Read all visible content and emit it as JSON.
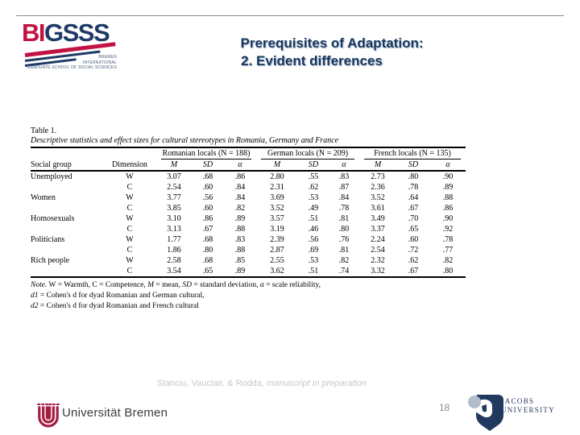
{
  "slide": {
    "title_line1": "Prerequisites of Adaptation:",
    "title_line2": "2. Evident differences",
    "page_number": "18"
  },
  "logo_bigsss": {
    "wordmark_red": "BI",
    "wordmark_blue": "GSSS",
    "tagline_line1": "BREMEN",
    "tagline_line2": "INTERNATIONAL",
    "tagline_line3": "GRADUATE SCHOOL OF SOCIAL SCIENCES",
    "colors": {
      "red": "#c11243",
      "blue": "#1e3a66"
    }
  },
  "table": {
    "label": "Table 1.",
    "caption": "Descriptive statistics and effect sizes for cultural stereotypes in Romania, Germany and France",
    "groups": [
      {
        "label": "Romanian locals (N = 188)"
      },
      {
        "label": "German locals (N = 209)"
      },
      {
        "label": "French locals (N = 135)"
      }
    ],
    "col_headers": {
      "social_group": "Social group",
      "dimension": "Dimension",
      "m": "M",
      "sd": "SD",
      "alpha": "α"
    },
    "rows": [
      {
        "social_group": "Unemployed",
        "dimension": "W",
        "values": [
          "3.07",
          ".68",
          ".86",
          "2.80",
          ".55",
          ".83",
          "2.73",
          ".80",
          ".90"
        ]
      },
      {
        "social_group": "",
        "dimension": "C",
        "values": [
          "2.54",
          ".60",
          ".84",
          "2.31",
          ".62",
          ".87",
          "2.36",
          ".78",
          ".89"
        ]
      },
      {
        "social_group": "Women",
        "dimension": "W",
        "values": [
          "3.77",
          ".56",
          ".84",
          "3.69",
          ".53",
          ".84",
          "3.52",
          ".64",
          ".88"
        ]
      },
      {
        "social_group": "",
        "dimension": "C",
        "values": [
          "3.85",
          ".60",
          ".82",
          "3.52",
          ".49",
          ".78",
          "3.61",
          ".67",
          ".86"
        ]
      },
      {
        "social_group": "Homosexuals",
        "dimension": "W",
        "values": [
          "3.10",
          ".86",
          ".89",
          "3.57",
          ".51",
          ".81",
          "3.49",
          ".70",
          ".90"
        ]
      },
      {
        "social_group": "",
        "dimension": "C",
        "values": [
          "3.13",
          ".67",
          ".88",
          "3.19",
          ".46",
          ".80",
          "3.37",
          ".65",
          ".92"
        ]
      },
      {
        "social_group": "Politicians",
        "dimension": "W",
        "values": [
          "1.77",
          ".68",
          ".83",
          "2.39",
          ".56",
          ".76",
          "2.24",
          ".60",
          ".78"
        ]
      },
      {
        "social_group": "",
        "dimension": "C",
        "values": [
          "1.86",
          ".80",
          ".88",
          "2.87",
          ".69",
          ".81",
          "2.54",
          ".72",
          ".77"
        ]
      },
      {
        "social_group": "Rich people",
        "dimension": "W",
        "values": [
          "2.58",
          ".68",
          ".85",
          "2.55",
          ".53",
          ".82",
          "2.32",
          ".62",
          ".82"
        ]
      },
      {
        "social_group": "",
        "dimension": "C",
        "values": [
          "3.54",
          ".65",
          ".89",
          "3.62",
          ".51",
          ".74",
          "3.32",
          ".67",
          ".80"
        ]
      }
    ],
    "notes": [
      [
        {
          "text": "Note.",
          "italic": true
        },
        {
          "text": " W = Warmth, C = Competence, ",
          "italic": false
        },
        {
          "text": "M",
          "italic": true
        },
        {
          "text": " = mean, ",
          "italic": false
        },
        {
          "text": "SD",
          "italic": true
        },
        {
          "text": " = standard deviation, ",
          "italic": false
        },
        {
          "text": "α",
          "italic": true
        },
        {
          "text": " = scale reliability,",
          "italic": false
        }
      ],
      [
        {
          "text": "d1",
          "italic": true
        },
        {
          "text": " = Cohen's d for dyad Romanian and German cultural,",
          "italic": false
        }
      ],
      [
        {
          "text": "d2",
          "italic": true
        },
        {
          "text": " = Cohen's d for dyad Romanian and French cultural",
          "italic": false
        }
      ]
    ]
  },
  "footer": {
    "citation_normal": "Stanciu, Vauclair, & Rodda, ",
    "citation_italic": "manuscript in preparation",
    "uni_bremen_label": "Universität Bremen",
    "jacobs_line1": "JACOBS",
    "jacobs_line2": "UNIVERSITY"
  }
}
